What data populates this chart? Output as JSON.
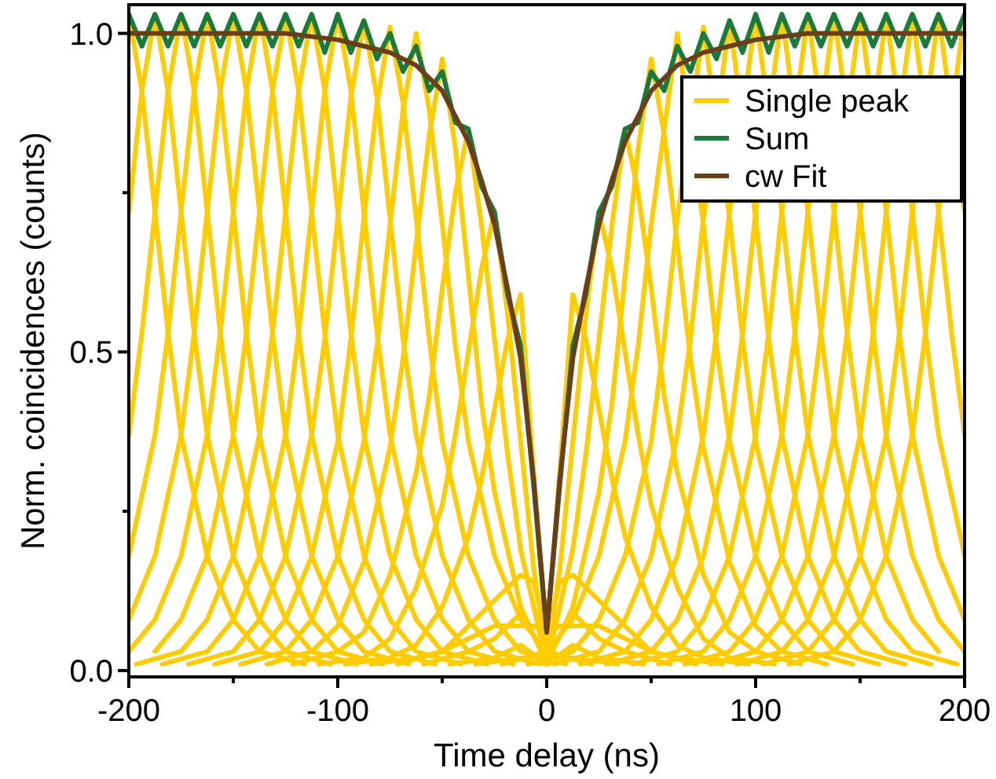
{
  "chart_data": {
    "type": "line",
    "xlabel": "Time delay (ns)",
    "ylabel": "Norm. coincidences (counts)",
    "xlim": [
      -200,
      200
    ],
    "ylim": [
      -0.01,
      1.045
    ],
    "xticks": [
      -200,
      {
        "value": -150,
        "label": null
      },
      -100,
      {
        "value": -50,
        "label": null
      },
      0,
      {
        "value": 50,
        "label": null
      },
      100,
      {
        "value": 150,
        "label": null
      },
      200
    ],
    "yticks": [
      {
        "value": 0,
        "label": "0.0"
      },
      {
        "value": 0.25,
        "label": null
      },
      {
        "value": 0.5,
        "label": "0.5"
      },
      {
        "value": 0.75,
        "label": null
      },
      {
        "value": 1,
        "label": "1.0"
      }
    ],
    "legend": "top right",
    "series": [
      {
        "name": "Single peak",
        "color": "#ffcc00",
        "x": [
          -200,
          -193.75,
          -187.5,
          -181.25,
          -175,
          -162.5,
          -150,
          -137.5,
          -116
        ],
        "values": [
          1.03,
          0.91,
          0.72,
          0.53,
          0.37,
          0.18,
          0.08,
          0.03,
          0.01
        ]
      },
      {
        "color": "#ffcc00",
        "x": [
          -200,
          -193.75,
          -187.5,
          -181.25,
          -175,
          -168.75,
          -162.5,
          -150,
          -137.5,
          -125,
          -103.5
        ],
        "values": [
          0.72,
          0.91,
          1.03,
          0.91,
          0.72,
          0.53,
          0.37,
          0.18,
          0.08,
          0.03,
          0.01
        ]
      },
      {
        "color": "#ffcc00",
        "x": [
          -200,
          -193.75,
          -187.5,
          -181.25,
          -175,
          -168.75,
          -162.5,
          -156.25,
          -150,
          -137.5,
          -125,
          -112.5,
          -91
        ],
        "values": [
          0.37,
          0.53,
          0.72,
          0.91,
          1.03,
          0.91,
          0.72,
          0.53,
          0.37,
          0.18,
          0.08,
          0.03,
          0.01
        ]
      },
      {
        "color": "#ffcc00",
        "x": [
          -200,
          -187.5,
          -181.25,
          -175,
          -168.75,
          -162.5,
          -156.25,
          -150,
          -143.75,
          -137.5,
          -125,
          -112.5,
          -100,
          -78.5
        ],
        "values": [
          0.18,
          0.37,
          0.53,
          0.72,
          0.91,
          1.03,
          0.91,
          0.72,
          0.53,
          0.37,
          0.18,
          0.08,
          0.03,
          0.01
        ]
      },
      {
        "color": "#ffcc00",
        "x": [
          -200,
          -187.5,
          -175,
          -168.75,
          -162.5,
          -156.25,
          -150,
          -143.75,
          -137.5,
          -131.25,
          -125,
          -112.5,
          -100,
          -87.5,
          -66
        ],
        "values": [
          0.08,
          0.18,
          0.37,
          0.53,
          0.72,
          0.91,
          1.03,
          0.91,
          0.72,
          0.53,
          0.37,
          0.18,
          0.08,
          0.03,
          0.01
        ]
      },
      {
        "color": "#ffcc00",
        "x": [
          -200,
          -187.5,
          -175,
          -162.5,
          -156.25,
          -150,
          -143.75,
          -137.5,
          -131.25,
          -125,
          -118.75,
          -112.5,
          -100,
          -87.5,
          -75,
          -53.5
        ],
        "values": [
          0.03,
          0.08,
          0.18,
          0.37,
          0.53,
          0.72,
          0.91,
          1.03,
          0.91,
          0.72,
          0.53,
          0.37,
          0.18,
          0.08,
          0.03,
          0.01
        ]
      },
      {
        "color": "#ffcc00",
        "x": [
          -187.5,
          -175,
          -162.5,
          -150,
          -143.75,
          -137.5,
          -131.25,
          -125,
          -118.75,
          -112.5,
          -106.25,
          -100,
          -87.5,
          -75,
          -62.5,
          -41
        ],
        "values": [
          0.03,
          0.08,
          0.18,
          0.37,
          0.53,
          0.72,
          0.91,
          1.03,
          0.91,
          0.72,
          0.53,
          0.37,
          0.18,
          0.08,
          0.03,
          0.01
        ]
      },
      {
        "color": "#ffcc00",
        "x": [
          -196.5,
          -175,
          -162.5,
          -150,
          -137.5,
          -131.25,
          -125,
          -118.75,
          -112.5,
          -106.25,
          -100,
          -93.75,
          -87.5,
          -75,
          -62.5,
          -50,
          -28.5
        ],
        "values": [
          0.01,
          0.03,
          0.08,
          0.18,
          0.37,
          0.53,
          0.72,
          0.91,
          1.03,
          0.91,
          0.72,
          0.53,
          0.37,
          0.18,
          0.08,
          0.03,
          0.01
        ]
      },
      {
        "color": "#ffcc00",
        "x": [
          -184,
          -162.5,
          -150,
          -137.5,
          -125,
          -118.75,
          -112.5,
          -106.25,
          -100,
          -93.75,
          -87.5,
          -81.25,
          -75,
          -62.5,
          -50,
          -37.5,
          -16
        ],
        "values": [
          0.01,
          0.03,
          0.08,
          0.18,
          0.37,
          0.53,
          0.72,
          0.91,
          1.03,
          0.91,
          0.72,
          0.53,
          0.37,
          0.18,
          0.08,
          0.03,
          0.01
        ]
      },
      {
        "color": "#ffcc00",
        "x": [
          -171.5,
          -150,
          -137.5,
          -125,
          -112.5,
          -106.25,
          -100,
          -93.75,
          -87.5,
          -81.25,
          -75,
          -68.75,
          -62.5,
          -50,
          -37.5,
          -25,
          -3.5
        ],
        "values": [
          0.01,
          0.03,
          0.08,
          0.18,
          0.37,
          0.52,
          0.71,
          0.9,
          1.02,
          0.9,
          0.71,
          0.52,
          0.37,
          0.18,
          0.08,
          0.03,
          0.01
        ]
      },
      {
        "color": "#ffcc00",
        "x": [
          -159,
          -137.5,
          -125,
          -112.5,
          -100,
          -93.75,
          -87.5,
          -81.25,
          -75,
          -68.75,
          -62.5,
          -56.25,
          -50,
          -37.5,
          -25,
          -12.5,
          9
        ],
        "values": [
          0.01,
          0.03,
          0.08,
          0.18,
          0.36,
          0.52,
          0.71,
          0.89,
          1.01,
          0.89,
          0.71,
          0.52,
          0.36,
          0.18,
          0.08,
          0.03,
          0.01
        ]
      },
      {
        "color": "#ffcc00",
        "x": [
          -146.5,
          -125,
          -112.5,
          -100,
          -87.5,
          -81.25,
          -75,
          -68.75,
          -62.5,
          -56.25,
          -50,
          -43.75,
          -37.5,
          -25,
          -12.5,
          0,
          21.5
        ],
        "values": [
          0.01,
          0.03,
          0.08,
          0.18,
          0.36,
          0.51,
          0.7,
          0.88,
          1.0,
          0.88,
          0.7,
          0.51,
          0.36,
          0.18,
          0.08,
          0.03,
          0.01
        ]
      },
      {
        "color": "#ffcc00",
        "x": [
          -134,
          -112.5,
          -100,
          -87.5,
          -75,
          -68.75,
          -62.5,
          -56.25,
          -50,
          -43.75,
          -37.5,
          -31.25,
          -25,
          -12.5,
          0,
          12.5,
          34
        ],
        "values": [
          0.01,
          0.03,
          0.07,
          0.17,
          0.35,
          0.49,
          0.67,
          0.84,
          0.96,
          0.82,
          0.62,
          0.42,
          0.28,
          0.1,
          0.01,
          0.02,
          0.01
        ]
      },
      {
        "color": "#ffcc00",
        "x": [
          -121.5,
          -100,
          -87.5,
          -75,
          -62.5,
          -56.25,
          -50,
          -43.75,
          -37.5,
          -31.25,
          -25,
          -18.75,
          -12.5,
          0,
          12.5,
          25,
          46.5
        ],
        "values": [
          0.01,
          0.03,
          0.06,
          0.15,
          0.31,
          0.43,
          0.6,
          0.75,
          0.85,
          0.7,
          0.52,
          0.34,
          0.19,
          0.01,
          0.04,
          0.02,
          0.01
        ]
      },
      {
        "color": "#ffcc00",
        "x": [
          -109,
          -87.5,
          -75,
          -62.5,
          -50,
          -43.75,
          -37.5,
          -31.25,
          -25,
          -18.75,
          -12.5,
          -6.25,
          0,
          12.5,
          25,
          37.5,
          59
        ],
        "values": [
          0.01,
          0.02,
          0.05,
          0.13,
          0.26,
          0.37,
          0.5,
          0.63,
          0.72,
          0.56,
          0.36,
          0.16,
          0.02,
          0.09,
          0.05,
          0.03,
          0.01
        ]
      },
      {
        "color": "#ffcc00",
        "x": [
          -96.5,
          -75,
          -62.5,
          -50,
          -37.5,
          -31.25,
          -25,
          -18.75,
          -12.5,
          -6.25,
          0,
          6.25,
          12.5,
          25,
          37.5,
          50,
          71.5
        ],
        "values": [
          0.01,
          0.02,
          0.04,
          0.1,
          0.21,
          0.3,
          0.41,
          0.52,
          0.59,
          0.31,
          0.05,
          0.14,
          0.15,
          0.11,
          0.07,
          0.03,
          0.01
        ]
      },
      {
        "color": "#ffcc00",
        "x": [
          -84,
          -62.5,
          -50,
          -37.5,
          -25,
          -18.75,
          -12.5,
          -6.25,
          0,
          6.25,
          12.5,
          18.75,
          25,
          37.5,
          50,
          62.5,
          84
        ],
        "values": [
          0.01,
          0.02,
          0.03,
          0.05,
          0.07,
          0.07,
          0.07,
          0.07,
          0.06,
          0.07,
          0.07,
          0.07,
          0.07,
          0.05,
          0.03,
          0.02,
          0.01
        ]
      },
      {
        "color": "#ffcc00",
        "x": [
          -71.5,
          -50,
          -37.5,
          -25,
          -12.5,
          -6.25,
          0,
          6.25,
          12.5,
          18.75,
          25,
          31.25,
          37.5,
          50,
          62.5,
          75,
          96.5
        ],
        "values": [
          0.01,
          0.03,
          0.07,
          0.11,
          0.15,
          0.14,
          0.05,
          0.31,
          0.59,
          0.52,
          0.41,
          0.3,
          0.21,
          0.1,
          0.04,
          0.02,
          0.01
        ]
      },
      {
        "color": "#ffcc00",
        "x": [
          -59,
          -37.5,
          -25,
          -12.5,
          0,
          6.25,
          12.5,
          18.75,
          25,
          31.25,
          37.5,
          43.75,
          50,
          62.5,
          75,
          87.5,
          109
        ],
        "values": [
          0.01,
          0.03,
          0.05,
          0.09,
          0.02,
          0.16,
          0.36,
          0.56,
          0.72,
          0.63,
          0.5,
          0.37,
          0.26,
          0.13,
          0.05,
          0.02,
          0.01
        ]
      },
      {
        "color": "#ffcc00",
        "x": [
          -46.5,
          -25,
          -12.5,
          0,
          12.5,
          18.75,
          25,
          31.25,
          37.5,
          43.75,
          50,
          56.25,
          62.5,
          75,
          87.5,
          100,
          121.5
        ],
        "values": [
          0.01,
          0.02,
          0.04,
          0.01,
          0.19,
          0.34,
          0.52,
          0.7,
          0.85,
          0.75,
          0.6,
          0.43,
          0.31,
          0.15,
          0.06,
          0.03,
          0.01
        ]
      },
      {
        "color": "#ffcc00",
        "x": [
          -34,
          -12.5,
          0,
          12.5,
          25,
          31.25,
          37.5,
          43.75,
          50,
          56.25,
          62.5,
          68.75,
          75,
          87.5,
          100,
          112.5,
          134
        ],
        "values": [
          0.01,
          0.02,
          0.01,
          0.1,
          0.28,
          0.42,
          0.62,
          0.82,
          0.96,
          0.84,
          0.67,
          0.49,
          0.35,
          0.17,
          0.07,
          0.03,
          0.01
        ]
      },
      {
        "color": "#ffcc00",
        "x": [
          -21.5,
          0,
          12.5,
          25,
          37.5,
          43.75,
          50,
          62.5,
          75,
          81.25,
          87.5,
          100,
          112.5,
          125,
          146.5
        ],
        "values": [
          0.01,
          0.03,
          0.08,
          0.18,
          0.36,
          0.51,
          0.7,
          1.0,
          0.7,
          0.51,
          0.36,
          0.18,
          0.08,
          0.03,
          0.01
        ]
      },
      {
        "color": "#ffcc00",
        "x": [
          -9,
          12.5,
          25,
          37.5,
          50,
          56.25,
          62.5,
          75,
          87.5,
          93.75,
          100,
          112.5,
          125,
          137.5,
          159
        ],
        "values": [
          0.01,
          0.03,
          0.08,
          0.18,
          0.36,
          0.52,
          0.71,
          1.01,
          0.71,
          0.52,
          0.36,
          0.18,
          0.08,
          0.03,
          0.01
        ]
      },
      {
        "color": "#ffcc00",
        "x": [
          3.5,
          25,
          37.5,
          50,
          62.5,
          68.75,
          75,
          87.5,
          100,
          106.25,
          112.5,
          125,
          137.5,
          150,
          171.5
        ],
        "values": [
          0.01,
          0.03,
          0.08,
          0.18,
          0.37,
          0.52,
          0.71,
          1.02,
          0.71,
          0.52,
          0.37,
          0.18,
          0.08,
          0.03,
          0.01
        ]
      },
      {
        "color": "#ffcc00",
        "x": [
          16,
          37.5,
          50,
          62.5,
          75,
          81.25,
          87.5,
          100,
          112.5,
          118.75,
          125,
          137.5,
          150,
          162.5,
          184
        ],
        "values": [
          0.01,
          0.03,
          0.08,
          0.18,
          0.37,
          0.53,
          0.72,
          1.03,
          0.72,
          0.53,
          0.37,
          0.18,
          0.08,
          0.03,
          0.01
        ]
      },
      {
        "color": "#ffcc00",
        "x": [
          28.5,
          50,
          62.5,
          75,
          87.5,
          93.75,
          100,
          112.5,
          125,
          131.25,
          137.5,
          150,
          162.5,
          175,
          196.5
        ],
        "values": [
          0.01,
          0.03,
          0.08,
          0.18,
          0.37,
          0.53,
          0.72,
          1.03,
          0.72,
          0.53,
          0.37,
          0.18,
          0.08,
          0.03,
          0.01
        ]
      },
      {
        "color": "#ffcc00",
        "x": [
          41,
          62.5,
          75,
          87.5,
          100,
          106.25,
          112.5,
          125,
          137.5,
          143.75,
          150,
          162.5,
          175,
          187.5
        ],
        "values": [
          0.01,
          0.03,
          0.08,
          0.18,
          0.37,
          0.53,
          0.72,
          1.03,
          0.72,
          0.53,
          0.37,
          0.18,
          0.08,
          0.03
        ]
      },
      {
        "color": "#ffcc00",
        "x": [
          53.5,
          75,
          87.5,
          100,
          112.5,
          118.75,
          125,
          137.5,
          150,
          156.25,
          162.5,
          175,
          187.5,
          200
        ],
        "values": [
          0.01,
          0.03,
          0.08,
          0.18,
          0.37,
          0.53,
          0.72,
          1.03,
          0.72,
          0.53,
          0.37,
          0.18,
          0.08,
          0.03
        ]
      },
      {
        "color": "#ffcc00",
        "x": [
          66,
          87.5,
          100,
          112.5,
          125,
          131.25,
          137.5,
          150,
          162.5,
          168.75,
          175,
          187.5,
          200
        ],
        "values": [
          0.01,
          0.03,
          0.08,
          0.18,
          0.37,
          0.53,
          0.72,
          1.03,
          0.72,
          0.53,
          0.37,
          0.18,
          0.08
        ]
      },
      {
        "color": "#ffcc00",
        "x": [
          78.5,
          100,
          112.5,
          125,
          137.5,
          143.75,
          150,
          162.5,
          175,
          181.25,
          187.5,
          200
        ],
        "values": [
          0.01,
          0.03,
          0.08,
          0.18,
          0.37,
          0.53,
          0.72,
          1.03,
          0.72,
          0.53,
          0.37,
          0.18
        ]
      },
      {
        "color": "#ffcc00",
        "x": [
          91,
          112.5,
          125,
          137.5,
          150,
          156.25,
          162.5,
          175,
          187.5,
          193.75,
          200
        ],
        "values": [
          0.01,
          0.03,
          0.08,
          0.18,
          0.37,
          0.53,
          0.72,
          1.03,
          0.72,
          0.53,
          0.37
        ]
      },
      {
        "color": "#ffcc00",
        "x": [
          103.5,
          125,
          137.5,
          150,
          162.5,
          168.75,
          175,
          187.5,
          200
        ],
        "values": [
          0.01,
          0.03,
          0.08,
          0.18,
          0.37,
          0.53,
          0.72,
          1.03,
          0.72
        ]
      },
      {
        "color": "#ffcc00",
        "x": [
          116,
          137.5,
          150,
          162.5,
          175,
          181.25,
          187.5,
          200
        ],
        "values": [
          0.01,
          0.03,
          0.08,
          0.18,
          0.37,
          0.53,
          0.72,
          1.03
        ]
      },
      {
        "name": "Sum",
        "color": "#1a7a3a",
        "x": [
          -200,
          -193.75,
          -187.5,
          -181.25,
          -175,
          -168.75,
          -162.5,
          -156.25,
          -150,
          -143.75,
          -137.5,
          -131.25,
          -125,
          -118.75,
          -112.5,
          -106.25,
          -100,
          -93.75,
          -87.5,
          -81.25,
          -75,
          -68.75,
          -62.5,
          -56.25,
          -50,
          -43.75,
          -37.5,
          -31.25,
          -25,
          -18.75,
          -12.5,
          -6.25,
          0,
          6.25,
          12.5,
          18.75,
          25,
          31.25,
          37.5,
          43.75,
          50,
          56.25,
          62.5,
          68.75,
          75,
          81.25,
          87.5,
          93.75,
          100,
          106.25,
          112.5,
          118.75,
          125,
          131.25,
          137.5,
          143.75,
          150,
          156.25,
          162.5,
          168.75,
          175,
          181.25,
          187.5,
          193.75,
          200
        ],
        "values": [
          1.03,
          0.98,
          1.03,
          0.98,
          1.03,
          0.98,
          1.03,
          0.98,
          1.03,
          0.98,
          1.03,
          0.98,
          1.03,
          0.98,
          1.03,
          0.97,
          1.03,
          0.97,
          1.02,
          0.96,
          1.0,
          0.94,
          0.98,
          0.91,
          0.94,
          0.86,
          0.85,
          0.76,
          0.72,
          0.59,
          0.51,
          0.29,
          0.06,
          0.29,
          0.51,
          0.59,
          0.72,
          0.76,
          0.85,
          0.86,
          0.94,
          0.91,
          0.98,
          0.94,
          1.0,
          0.96,
          1.02,
          0.97,
          1.03,
          0.97,
          1.03,
          0.98,
          1.03,
          0.98,
          1.03,
          0.98,
          1.03,
          0.98,
          1.03,
          0.98,
          1.03,
          0.98,
          1.03,
          0.98,
          1.03
        ]
      },
      {
        "name": "cw Fit",
        "color": "#6b3e1a",
        "x": [
          -200,
          -150,
          -125,
          -100,
          -87.5,
          -75,
          -62.5,
          -50,
          -43.75,
          -37.5,
          -31.25,
          -25,
          -18.75,
          -12.5,
          -6.25,
          0,
          6.25,
          12.5,
          18.75,
          25,
          31.25,
          37.5,
          43.75,
          50,
          62.5,
          75,
          87.5,
          100,
          125,
          150,
          200
        ],
        "values": [
          1.0,
          1.0,
          1.0,
          0.99,
          0.98,
          0.97,
          0.95,
          0.91,
          0.87,
          0.83,
          0.77,
          0.7,
          0.6,
          0.49,
          0.3,
          0.06,
          0.3,
          0.49,
          0.6,
          0.7,
          0.77,
          0.83,
          0.87,
          0.91,
          0.95,
          0.97,
          0.98,
          0.99,
          1.0,
          1.0,
          1.0
        ]
      }
    ]
  }
}
